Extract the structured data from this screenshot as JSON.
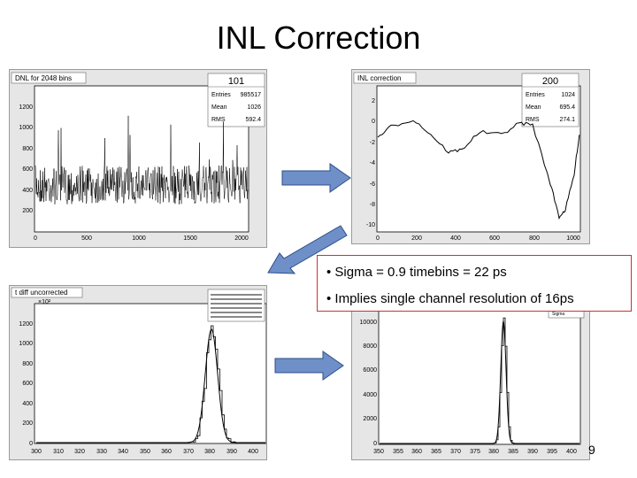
{
  "slide": {
    "title": "INL Correction",
    "page_number": "9",
    "bullets": [
      "• Sigma = 0.9 timebins = 22 ps",
      "• Implies single channel resolution of 16ps"
    ]
  },
  "panels": [
    {
      "id": "dnl",
      "hist_title": "DNL for 2048 bins",
      "stats_id": "101",
      "stats": [
        [
          "Entries",
          "985517"
        ],
        [
          "Mean",
          "1026"
        ],
        [
          "RMS",
          "592.4"
        ]
      ],
      "yticks": [
        "200",
        "400",
        "600",
        "800",
        "1000",
        "1200"
      ],
      "xticks": [
        "0",
        "500",
        "1000",
        "1500",
        "2000"
      ]
    },
    {
      "id": "inl",
      "hist_title": "INL correction",
      "stats_id": "200",
      "stats": [
        [
          "Entries",
          "1024"
        ],
        [
          "Mean",
          "695.4"
        ],
        [
          "RMS",
          "274.1"
        ]
      ],
      "yticks": [
        "2",
        "0",
        "-2",
        "-4",
        "-6",
        "-8",
        "-10"
      ],
      "xticks": [
        "0",
        "200",
        "400",
        "600",
        "800",
        "1000"
      ]
    },
    {
      "id": "tdiff",
      "hist_title": "t diff uncorrected",
      "exponent": "×10²",
      "yticks": [
        "0",
        "200",
        "400",
        "600",
        "800",
        "1000",
        "1200"
      ],
      "xticks": [
        "300",
        "310",
        "320",
        "330",
        "340",
        "350",
        "360",
        "370",
        "380",
        "390",
        "400"
      ]
    },
    {
      "id": "corrected",
      "stats_label": "Sigma",
      "yticks": [
        "0",
        "2000",
        "4000",
        "6000",
        "8000",
        "10000"
      ],
      "xticks": [
        "350",
        "355",
        "360",
        "365",
        "370",
        "375",
        "380",
        "385",
        "390",
        "395",
        "400"
      ]
    }
  ],
  "colors": {
    "arrow_fill": "#6f8fc8",
    "arrow_stroke": "#2f4f8a",
    "frame": "#e6e6e6",
    "callout_border": "#d03030"
  }
}
